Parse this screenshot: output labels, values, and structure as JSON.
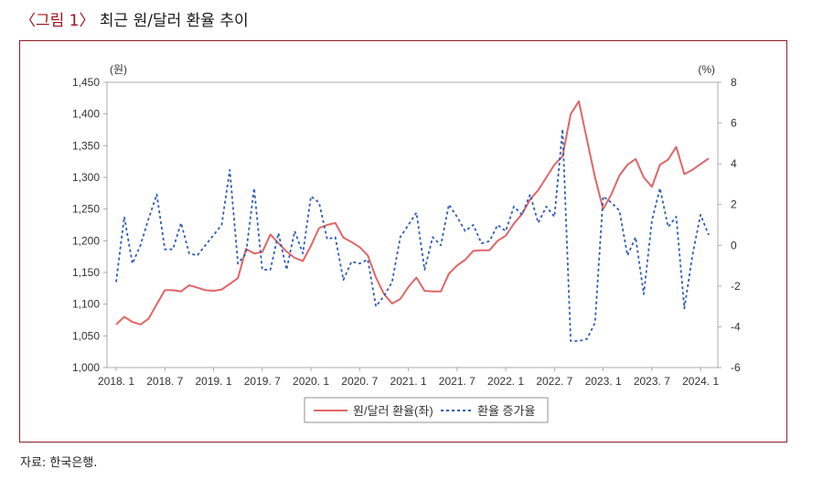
{
  "figure": {
    "label": "〈그림 1〉",
    "title": "최근 원/달러 환율 추이",
    "source": "자료: 한국은행."
  },
  "chart_data": {
    "type": "line",
    "title": "최근 원/달러 환율 추이",
    "x_tick_labels": [
      "2018. 1",
      "2018. 7",
      "2019. 1",
      "2019. 7",
      "2020. 1",
      "2020. 7",
      "2021. 1",
      "2021. 7",
      "2022. 1",
      "2022. 7",
      "2023. 1",
      "2023. 7",
      "2024. 1"
    ],
    "x_start": "2018-01",
    "y_left": {
      "unit": "(원)",
      "ylim": [
        1000,
        1450
      ],
      "ticks": [
        "1,000",
        "1,050",
        "1,100",
        "1,150",
        "1,200",
        "1,250",
        "1,300",
        "1,350",
        "1,400",
        "1,450"
      ]
    },
    "y_right": {
      "unit": "(%)",
      "ylim": [
        -6,
        8
      ],
      "ticks": [
        "-6",
        "-4",
        "-2",
        "0",
        "2",
        "4",
        "6",
        "8"
      ]
    },
    "legend": {
      "position": "bottom-center"
    },
    "series": [
      {
        "name": "원/달러 환율(좌)",
        "axis": "left",
        "color": "#e06666",
        "style": "solid",
        "values": [
          1068,
          1080,
          1072,
          1068,
          1077,
          1100,
          1122,
          1122,
          1120,
          1130,
          1126,
          1122,
          1121,
          1123,
          1132,
          1141,
          1187,
          1180,
          1182,
          1210,
          1196,
          1183,
          1173,
          1168,
          1192,
          1220,
          1225,
          1228,
          1205,
          1198,
          1190,
          1177,
          1142,
          1116,
          1101,
          1108,
          1127,
          1142,
          1121,
          1120,
          1120,
          1148,
          1161,
          1170,
          1184,
          1185,
          1185,
          1200,
          1208,
          1227,
          1242,
          1265,
          1280,
          1300,
          1320,
          1333,
          1400,
          1420,
          1360,
          1300,
          1250,
          1273,
          1303,
          1320,
          1329,
          1300,
          1285,
          1320,
          1328,
          1348,
          1305,
          1312,
          1321,
          1330
        ]
      },
      {
        "name": "환율 증가율",
        "axis": "right",
        "color": "#2e5db4",
        "style": "dashed",
        "values": [
          -1.8,
          1.4,
          -0.9,
          0.0,
          1.3,
          2.5,
          -0.2,
          -0.2,
          1.1,
          -0.4,
          -0.5,
          0.0,
          0.5,
          1.0,
          3.7,
          -0.9,
          -0.4,
          2.8,
          -1.2,
          -1.2,
          0.6,
          -1.2,
          0.7,
          -0.4,
          2.4,
          2.1,
          0.3,
          0.4,
          -1.7,
          -0.8,
          -0.9,
          -0.7,
          -3.0,
          -2.5,
          -1.8,
          0.4,
          1.0,
          1.6,
          -1.2,
          0.4,
          0.0,
          2.0,
          1.4,
          0.7,
          1.0,
          0.1,
          0.2,
          1.0,
          0.7,
          1.9,
          1.5,
          2.5,
          1.1,
          1.9,
          1.4,
          5.7,
          -4.7,
          -4.7,
          -4.6,
          -3.8,
          2.4,
          2.1,
          1.7,
          -0.5,
          0.4,
          -2.4,
          1.2,
          2.8,
          0.9,
          1.4,
          -3.1,
          -0.5,
          1.5,
          0.5
        ]
      }
    ]
  }
}
